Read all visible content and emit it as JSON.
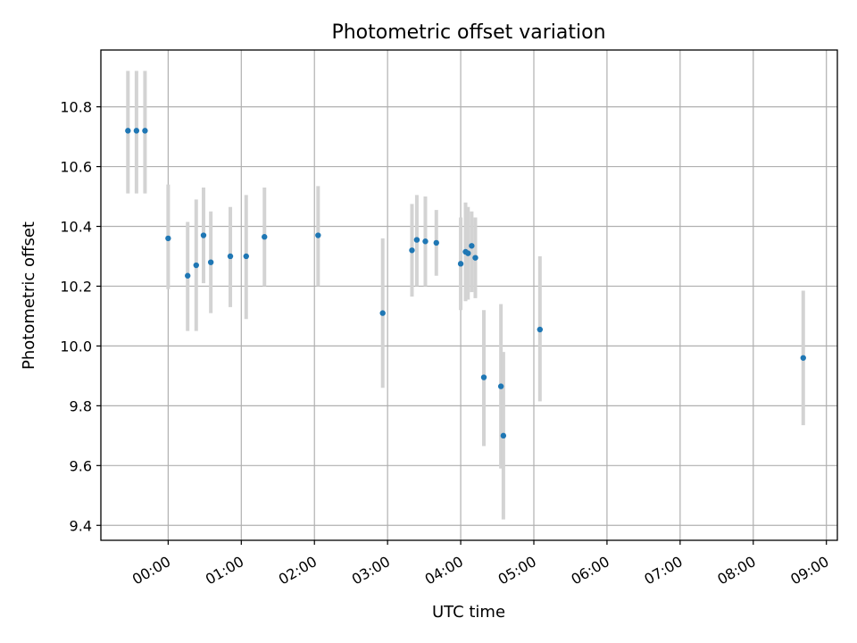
{
  "chart_data": {
    "type": "scatter",
    "title": "Photometric offset variation",
    "xlabel": "UTC time",
    "ylabel": "Photometric offset",
    "xlim_hours": [
      -0.92,
      9.15
    ],
    "ylim": [
      9.35,
      10.99
    ],
    "x_ticks": [
      {
        "hours": 0,
        "label": "00:00"
      },
      {
        "hours": 1,
        "label": "01:00"
      },
      {
        "hours": 2,
        "label": "02:00"
      },
      {
        "hours": 3,
        "label": "03:00"
      },
      {
        "hours": 4,
        "label": "04:00"
      },
      {
        "hours": 5,
        "label": "05:00"
      },
      {
        "hours": 6,
        "label": "06:00"
      },
      {
        "hours": 7,
        "label": "07:00"
      },
      {
        "hours": 8,
        "label": "08:00"
      },
      {
        "hours": 9,
        "label": "09:00"
      }
    ],
    "y_ticks": [
      9.4,
      9.6,
      9.8,
      10.0,
      10.2,
      10.4,
      10.6,
      10.8
    ],
    "grid": true,
    "point_color": "#1f77b4",
    "errorbar_color": "#d3d3d3",
    "points": [
      {
        "time": "23:27",
        "y": 10.72,
        "yerr_low": 10.51,
        "yerr_high": 10.92
      },
      {
        "time": "23:34",
        "y": 10.72,
        "yerr_low": 10.51,
        "yerr_high": 10.92
      },
      {
        "time": "23:41",
        "y": 10.72,
        "yerr_low": 10.51,
        "yerr_high": 10.92
      },
      {
        "time": "00:00",
        "y": 10.36,
        "yerr_low": 10.19,
        "yerr_high": 10.54
      },
      {
        "time": "00:16",
        "y": 10.235,
        "yerr_low": 10.05,
        "yerr_high": 10.415
      },
      {
        "time": "00:23",
        "y": 10.27,
        "yerr_low": 10.05,
        "yerr_high": 10.49
      },
      {
        "time": "00:29",
        "y": 10.37,
        "yerr_low": 10.21,
        "yerr_high": 10.53
      },
      {
        "time": "00:35",
        "y": 10.28,
        "yerr_low": 10.11,
        "yerr_high": 10.45
      },
      {
        "time": "00:51",
        "y": 10.3,
        "yerr_low": 10.13,
        "yerr_high": 10.465
      },
      {
        "time": "01:04",
        "y": 10.3,
        "yerr_low": 10.09,
        "yerr_high": 10.505
      },
      {
        "time": "01:19",
        "y": 10.365,
        "yerr_low": 10.2,
        "yerr_high": 10.53
      },
      {
        "time": "02:03",
        "y": 10.37,
        "yerr_low": 10.2,
        "yerr_high": 10.535
      },
      {
        "time": "02:56",
        "y": 10.11,
        "yerr_low": 9.86,
        "yerr_high": 10.36
      },
      {
        "time": "03:20",
        "y": 10.32,
        "yerr_low": 10.165,
        "yerr_high": 10.475
      },
      {
        "time": "03:24",
        "y": 10.355,
        "yerr_low": 10.2,
        "yerr_high": 10.505
      },
      {
        "time": "03:31",
        "y": 10.35,
        "yerr_low": 10.2,
        "yerr_high": 10.5
      },
      {
        "time": "03:40",
        "y": 10.345,
        "yerr_low": 10.235,
        "yerr_high": 10.455
      },
      {
        "time": "04:00",
        "y": 10.275,
        "yerr_low": 10.12,
        "yerr_high": 10.43
      },
      {
        "time": "04:04",
        "y": 10.315,
        "yerr_low": 10.15,
        "yerr_high": 10.48
      },
      {
        "time": "04:06",
        "y": 10.31,
        "yerr_low": 10.155,
        "yerr_high": 10.465
      },
      {
        "time": "04:09",
        "y": 10.335,
        "yerr_low": 10.18,
        "yerr_high": 10.45
      },
      {
        "time": "04:12",
        "y": 10.295,
        "yerr_low": 10.16,
        "yerr_high": 10.43
      },
      {
        "time": "04:19",
        "y": 9.895,
        "yerr_low": 9.665,
        "yerr_high": 10.12
      },
      {
        "time": "04:33",
        "y": 9.865,
        "yerr_low": 9.59,
        "yerr_high": 10.14
      },
      {
        "time": "04:35",
        "y": 9.7,
        "yerr_low": 9.42,
        "yerr_high": 9.98
      },
      {
        "time": "05:05",
        "y": 10.055,
        "yerr_low": 9.815,
        "yerr_high": 10.3
      },
      {
        "time": "08:41",
        "y": 9.96,
        "yerr_low": 9.735,
        "yerr_high": 10.185
      }
    ]
  }
}
